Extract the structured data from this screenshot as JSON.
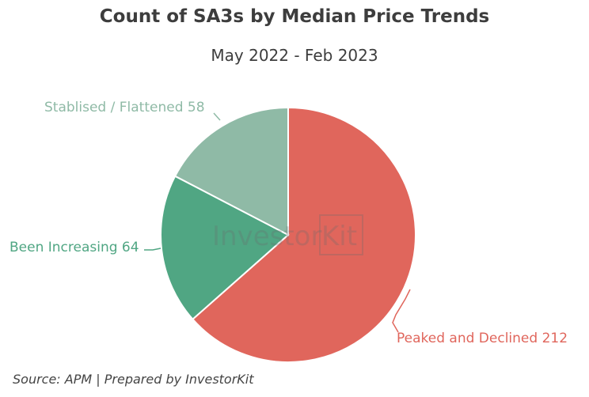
{
  "chart_data": {
    "type": "pie",
    "title": "Count of SA3s by Median Price Trends",
    "subtitle": "May 2022 - Feb 2023",
    "slices": [
      {
        "label": "Peaked and Declined",
        "value": 212,
        "color": "#e0665c",
        "label_text": "Peaked and Declined 212"
      },
      {
        "label": "Been Increasing",
        "value": 64,
        "color": "#50a683",
        "label_text": "Been Increasing 64"
      },
      {
        "label": "Stablised / Flattened",
        "value": 58,
        "color": "#8fbaa6",
        "label_text": "Stablised / Flattened 58"
      }
    ]
  },
  "watermark": {
    "left": "Investor",
    "right": "Kit"
  },
  "source": "Source: APM | Prepared by InvestorKit"
}
